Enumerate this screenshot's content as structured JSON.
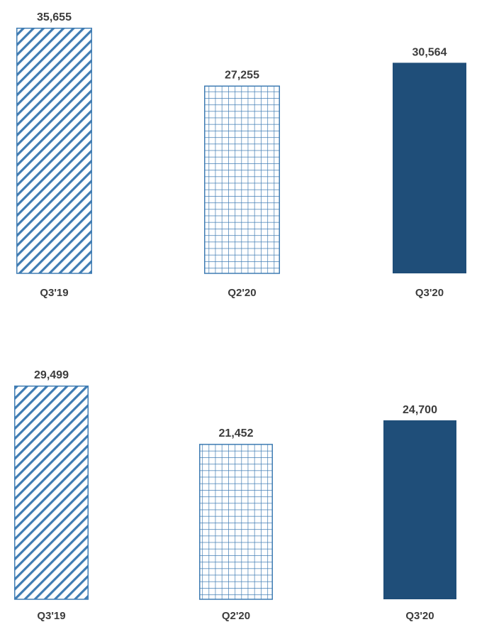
{
  "chart_data": [
    {
      "type": "bar",
      "categories": [
        "Q3'19",
        "Q2'20",
        "Q3'20"
      ],
      "values": [
        35655,
        27255,
        30564
      ],
      "value_labels": [
        "35,655",
        "27,255",
        "30,564"
      ],
      "fills": [
        "diagonal-hatch",
        "grid-hatch",
        "solid"
      ],
      "ylim": [
        0,
        35655
      ],
      "grid": false,
      "legend": "none"
    },
    {
      "type": "bar",
      "categories": [
        "Q3'19",
        "Q2'20",
        "Q3'20"
      ],
      "values": [
        29499,
        21452,
        24700
      ],
      "value_labels": [
        "29,499",
        "21,452",
        "24,700"
      ],
      "fills": [
        "diagonal-hatch",
        "grid-hatch",
        "solid"
      ],
      "ylim": [
        0,
        29499
      ],
      "grid": false,
      "legend": "none"
    }
  ],
  "colors": {
    "bar_outline": "#3f7cb3",
    "bar_solid": "#1f4e79",
    "label_text": "#3c3c3c"
  }
}
